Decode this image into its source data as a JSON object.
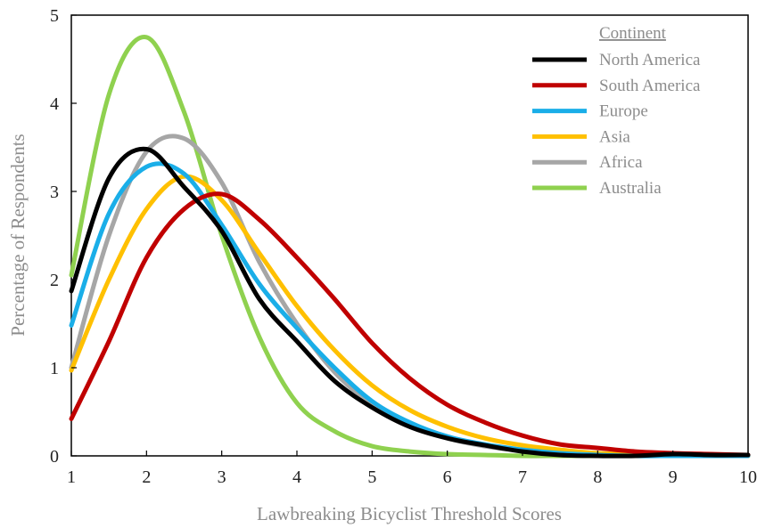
{
  "chart_data": {
    "type": "line",
    "xlabel": "Lawbreaking Bicyclist Threshold Scores",
    "ylabel": "Percentage of  Respondents",
    "xlim": [
      1,
      10
    ],
    "ylim": [
      0,
      5
    ],
    "x_ticks": [
      "1",
      "2",
      "3",
      "4",
      "5",
      "6",
      "7",
      "8",
      "9",
      "10"
    ],
    "y_ticks": [
      "0",
      "1",
      "2",
      "3",
      "4",
      "5"
    ],
    "grid": false,
    "legend": {
      "title": "Continent",
      "placement": "top-right"
    },
    "x": [
      1.0,
      1.5,
      2.0,
      2.5,
      3.0,
      3.5,
      4.0,
      4.5,
      5.0,
      5.5,
      6.0,
      6.5,
      7.0,
      7.5,
      8.0,
      8.5,
      9.0,
      9.5,
      10.0
    ],
    "series": [
      {
        "name": "North America",
        "color": "#000000",
        "values": [
          1.87,
          3.15,
          3.48,
          3.05,
          2.55,
          1.78,
          1.3,
          0.85,
          0.55,
          0.33,
          0.2,
          0.12,
          0.05,
          0.01,
          0.0,
          0.0,
          0.02,
          0.01,
          0.01
        ]
      },
      {
        "name": "South America",
        "color": "#c00000",
        "values": [
          0.42,
          1.3,
          2.25,
          2.8,
          2.97,
          2.68,
          2.25,
          1.78,
          1.28,
          0.88,
          0.58,
          0.38,
          0.23,
          0.13,
          0.09,
          0.05,
          0.03,
          0.02,
          0.01
        ]
      },
      {
        "name": "Europe",
        "color": "#1aaee8",
        "values": [
          1.48,
          2.75,
          3.28,
          3.2,
          2.62,
          1.95,
          1.45,
          1.0,
          0.62,
          0.38,
          0.22,
          0.13,
          0.07,
          0.03,
          0.01,
          0.0,
          0.0,
          0.0,
          0.0
        ]
      },
      {
        "name": "Asia",
        "color": "#ffc000",
        "values": [
          0.97,
          2.0,
          2.8,
          3.17,
          2.9,
          2.3,
          1.7,
          1.2,
          0.8,
          0.52,
          0.33,
          0.2,
          0.12,
          0.07,
          0.03,
          0.02,
          0.01,
          0.01,
          0.0
        ]
      },
      {
        "name": "Africa",
        "color": "#a6a6a6",
        "values": [
          1.0,
          2.5,
          3.45,
          3.6,
          3.1,
          2.2,
          1.5,
          0.95,
          0.58,
          0.35,
          0.2,
          0.11,
          0.06,
          0.03,
          0.01,
          0.0,
          0.0,
          0.0,
          0.0
        ]
      },
      {
        "name": "Australia",
        "color": "#8fd14f",
        "values": [
          2.05,
          4.1,
          4.75,
          3.9,
          2.5,
          1.35,
          0.6,
          0.28,
          0.11,
          0.05,
          0.02,
          0.01,
          0.0,
          0.0,
          0.0,
          0.0,
          0.0,
          0.0,
          0.0
        ]
      }
    ]
  }
}
